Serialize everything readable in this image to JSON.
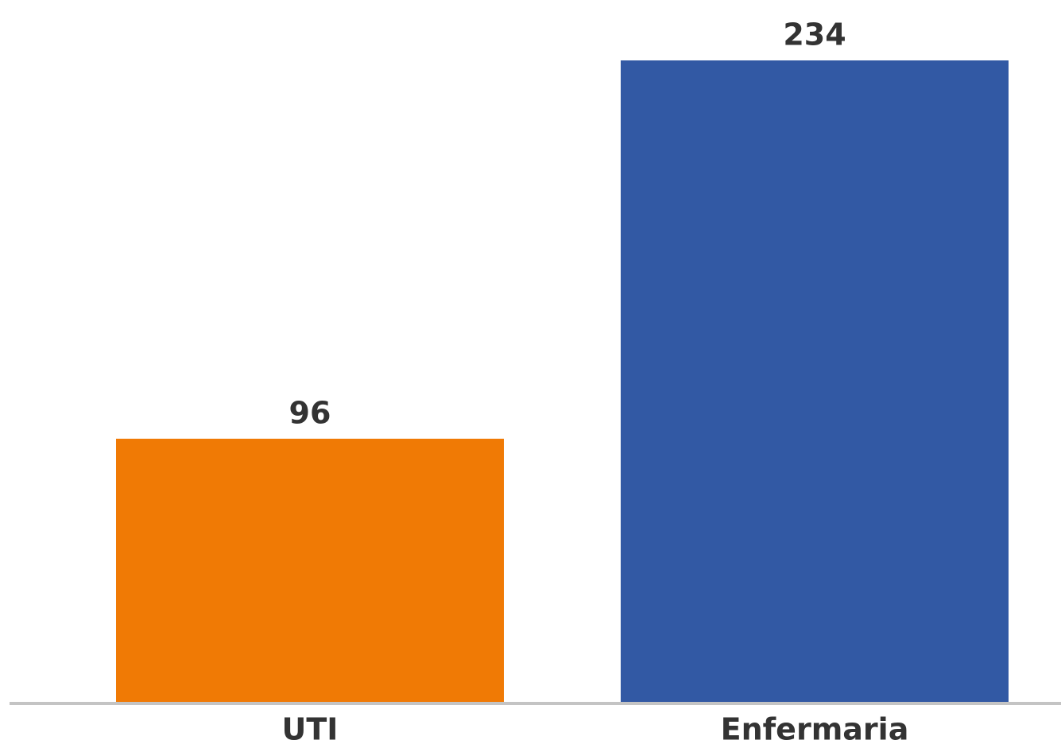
{
  "chart_data": {
    "type": "bar",
    "categories": [
      "UTI",
      "Enfermaria"
    ],
    "values": [
      96,
      234
    ],
    "colors": [
      "#f07a05",
      "#3259a4"
    ]
  }
}
